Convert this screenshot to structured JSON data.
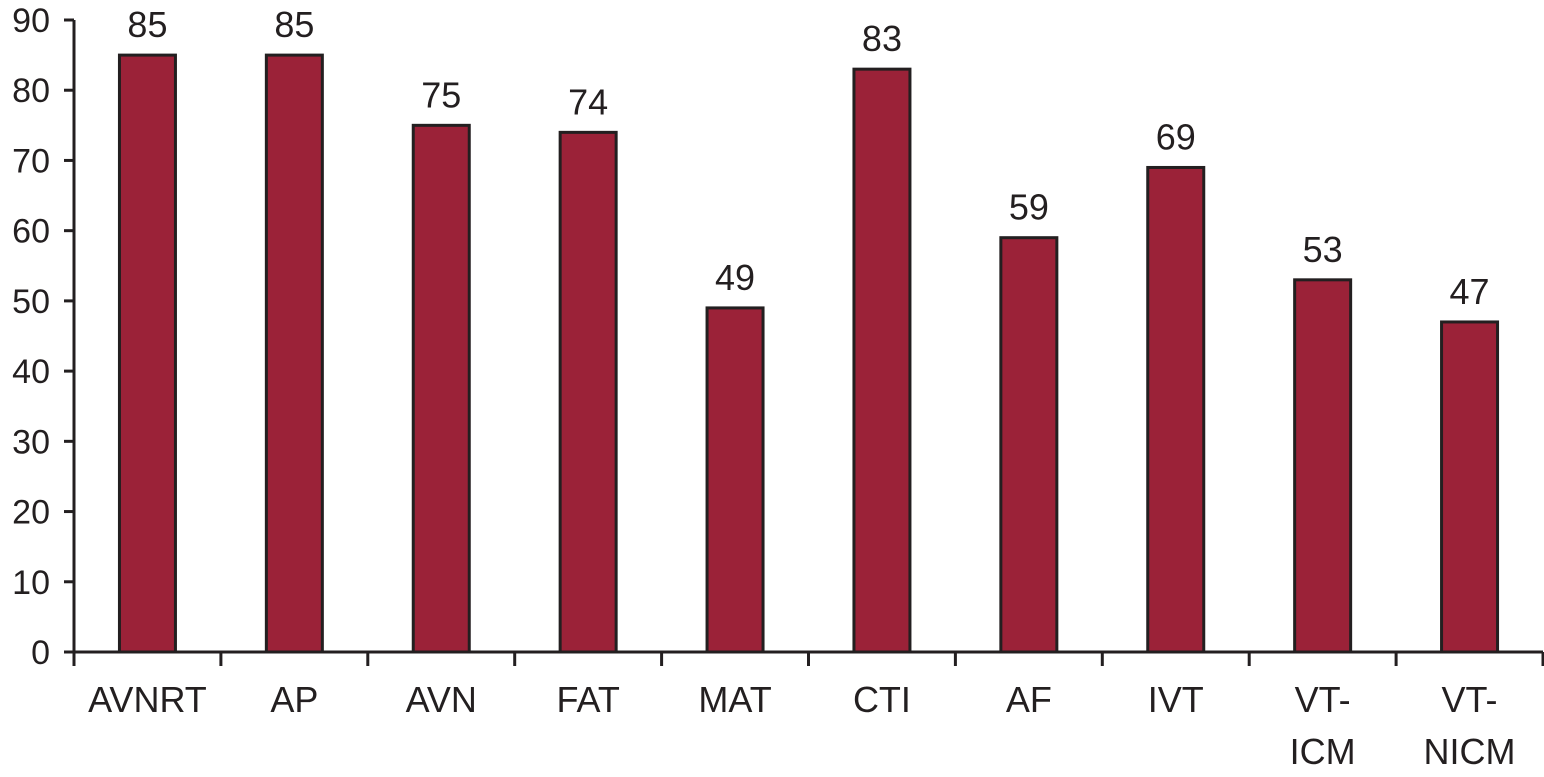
{
  "chart_data": {
    "type": "bar",
    "categories": [
      [
        "AVNRT"
      ],
      [
        "AP"
      ],
      [
        "AVN"
      ],
      [
        "FAT"
      ],
      [
        "MAT"
      ],
      [
        "CTI"
      ],
      [
        "AF"
      ],
      [
        "IVT"
      ],
      [
        "VT-",
        "ICM"
      ],
      [
        "VT-",
        "NICM"
      ]
    ],
    "values": [
      85,
      85,
      75,
      74,
      49,
      83,
      59,
      69,
      53,
      47
    ],
    "data_labels": [
      "85",
      "85",
      "75",
      "74",
      "49",
      "83",
      "59",
      "69",
      "53",
      "47"
    ],
    "y_ticks": [
      "0",
      "10",
      "20",
      "30",
      "40",
      "50",
      "60",
      "70",
      "80",
      "90"
    ],
    "ylim": [
      0,
      90
    ],
    "title": "",
    "xlabel": "",
    "ylabel": "",
    "grid": false,
    "legend": "none",
    "colors": {
      "bar_fill": "#9b2238",
      "bar_stroke": "#231f20",
      "axis": "#231f20",
      "text": "#231f20"
    }
  }
}
